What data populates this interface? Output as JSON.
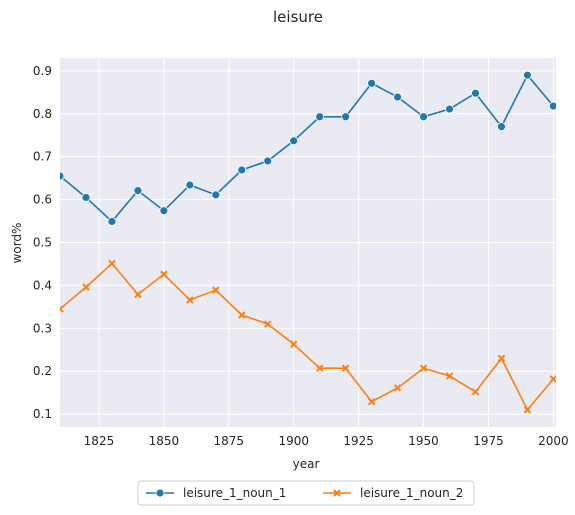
{
  "chart_data": {
    "type": "line",
    "title": "leisure",
    "xlabel": "year",
    "ylabel": "word%",
    "xlim": [
      1810,
      2001
    ],
    "ylim": [
      0.07,
      0.93
    ],
    "xticks": [
      1825,
      1850,
      1875,
      1900,
      1925,
      1950,
      1975,
      2000
    ],
    "yticks": [
      0.1,
      0.2,
      0.3,
      0.4,
      0.5,
      0.6,
      0.7,
      0.8,
      0.9
    ],
    "grid": true,
    "legend_position": "bottom-center",
    "x": [
      1810,
      1820,
      1830,
      1840,
      1850,
      1860,
      1870,
      1880,
      1890,
      1900,
      1910,
      1920,
      1930,
      1940,
      1950,
      1960,
      1970,
      1980,
      1990,
      2000
    ],
    "series": [
      {
        "name": "leisure_1_noun_1",
        "color": "#1f77b4",
        "marker": "circle",
        "values": [
          0.655,
          0.605,
          0.549,
          0.621,
          0.574,
          0.634,
          0.611,
          0.669,
          0.69,
          0.737,
          0.793,
          0.793,
          0.871,
          0.839,
          0.793,
          0.811,
          0.848,
          0.77,
          0.89,
          0.818
        ]
      },
      {
        "name": "leisure_1_noun_2",
        "color": "#ff7f0e",
        "marker": "x",
        "values": [
          0.345,
          0.396,
          0.451,
          0.379,
          0.426,
          0.366,
          0.389,
          0.331,
          0.31,
          0.263,
          0.207,
          0.207,
          0.129,
          0.161,
          0.207,
          0.189,
          0.152,
          0.23,
          0.11,
          0.182
        ]
      }
    ]
  }
}
